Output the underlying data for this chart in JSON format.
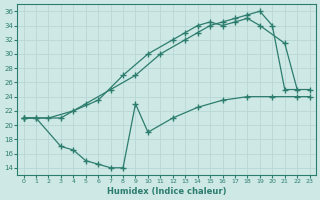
{
  "xlabel": "Humidex (Indice chaleur)",
  "bg_color": "#cde8e5",
  "grid_color": "#b8d8d5",
  "line_color": "#2d7d6e",
  "xlim": [
    -0.5,
    23.5
  ],
  "ylim": [
    13,
    37
  ],
  "yticks": [
    14,
    16,
    18,
    20,
    22,
    24,
    26,
    28,
    30,
    32,
    34,
    36
  ],
  "xticks": [
    0,
    1,
    2,
    3,
    4,
    5,
    6,
    7,
    8,
    9,
    10,
    11,
    12,
    13,
    14,
    15,
    16,
    17,
    18,
    19,
    20,
    21,
    22,
    23
  ],
  "line1_x": [
    0,
    1,
    3,
    5,
    7,
    9,
    11,
    13,
    14,
    15,
    16,
    17,
    18,
    19,
    20,
    21,
    23
  ],
  "line1_y": [
    21,
    21,
    21,
    23,
    25,
    27,
    30,
    32,
    33,
    34,
    34.5,
    35,
    35.5,
    36,
    34,
    25,
    25
  ],
  "line2_x": [
    0,
    2,
    4,
    6,
    8,
    10,
    12,
    13,
    14,
    15,
    16,
    17,
    18,
    19,
    21,
    22
  ],
  "line2_y": [
    21,
    21,
    22,
    23.5,
    27,
    30,
    32,
    33,
    34,
    34.5,
    34,
    34.5,
    35,
    34,
    31.5,
    25
  ],
  "line3_x": [
    0,
    1,
    3,
    4,
    5,
    6,
    7,
    8,
    9,
    10,
    12,
    14,
    16,
    18,
    20,
    22,
    23
  ],
  "line3_y": [
    21,
    21,
    17,
    16.5,
    15,
    14.5,
    14,
    14,
    23,
    19,
    21,
    22.5,
    23.5,
    24,
    24,
    24,
    24
  ]
}
